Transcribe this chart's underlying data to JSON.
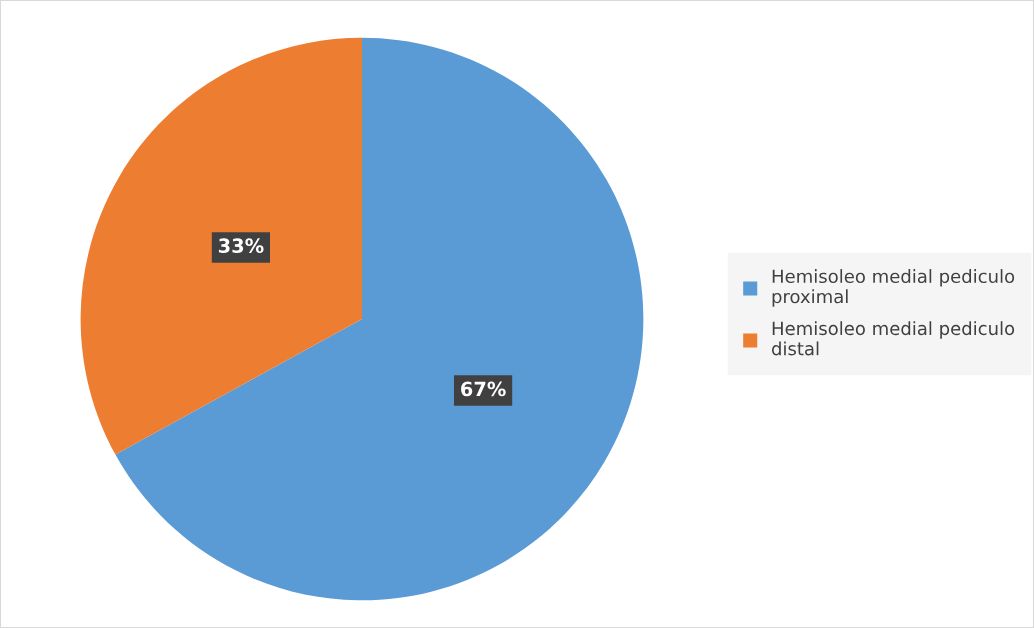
{
  "chart_data": {
    "type": "pie",
    "categories": [
      "Hemisoleo medial pediculo proximal",
      "Hemisoleo medial pediculo distal"
    ],
    "values": [
      67,
      33
    ],
    "colors": [
      "#5b9bd5",
      "#ed7d31"
    ],
    "value_labels": [
      "67%",
      "33%"
    ],
    "legend": "right"
  }
}
